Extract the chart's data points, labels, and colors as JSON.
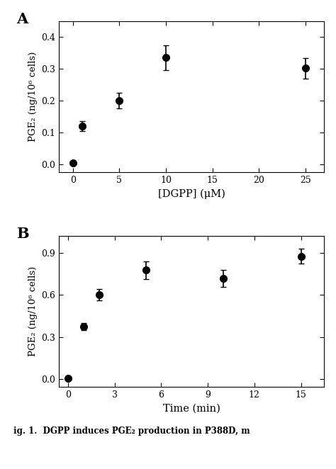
{
  "panel_A": {
    "x": [
      0,
      1,
      5,
      10,
      25
    ],
    "y": [
      0.005,
      0.12,
      0.2,
      0.335,
      0.302
    ],
    "yerr": [
      0.005,
      0.015,
      0.025,
      0.038,
      0.032
    ],
    "xlabel": "[DGPP] (μM)",
    "ylabel": "PGE₂ (ng/10⁶ cells)",
    "xlim": [
      -1.5,
      27
    ],
    "ylim": [
      -0.025,
      0.45
    ],
    "xticks": [
      0,
      5,
      10,
      15,
      20,
      25
    ],
    "yticks": [
      0.0,
      0.1,
      0.2,
      0.3,
      0.4
    ],
    "label": "A"
  },
  "panel_B": {
    "x": [
      0,
      1,
      2,
      5,
      10,
      15
    ],
    "y": [
      0.005,
      0.375,
      0.6,
      0.775,
      0.715,
      0.875
    ],
    "yerr": [
      0.005,
      0.025,
      0.04,
      0.065,
      0.06,
      0.055
    ],
    "xlabel": "Time (min)",
    "ylabel": "PGE₂ (ng/10⁶ cells)",
    "xlim": [
      -0.6,
      16.5
    ],
    "ylim": [
      -0.055,
      1.02
    ],
    "xticks": [
      0,
      3,
      6,
      9,
      12,
      15
    ],
    "yticks": [
      0.0,
      0.3,
      0.6,
      0.9
    ],
    "label": "B"
  },
  "caption": "ig. 1. DGPP induces PGE₂ production in P388D, m",
  "line_color": "#000000",
  "marker": "o",
  "markersize": 7,
  "capsize": 3,
  "linewidth": 1.2,
  "background_color": "#ffffff",
  "font_family": "DejaVu Serif"
}
